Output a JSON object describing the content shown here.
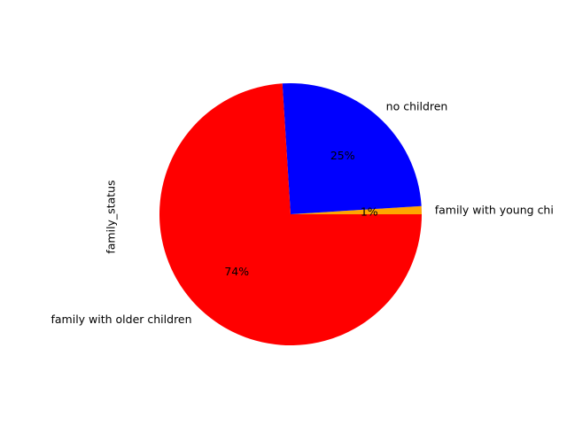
{
  "chart_data": {
    "type": "pie",
    "title": "",
    "ylabel": "family_status",
    "slices": [
      {
        "label": "family with young children",
        "display_label": "family with young chi",
        "value": 1,
        "pct_text": "1%",
        "color": "#ffa500"
      },
      {
        "label": "no children",
        "display_label": "no children",
        "value": 25,
        "pct_text": "25%",
        "color": "#0000ff"
      },
      {
        "label": "family with older children",
        "display_label": "family with older children",
        "value": 74,
        "pct_text": "74%",
        "color": "#ff0000"
      }
    ],
    "start_angle_deg": 0,
    "direction": "counterclockwise",
    "legend": false
  }
}
